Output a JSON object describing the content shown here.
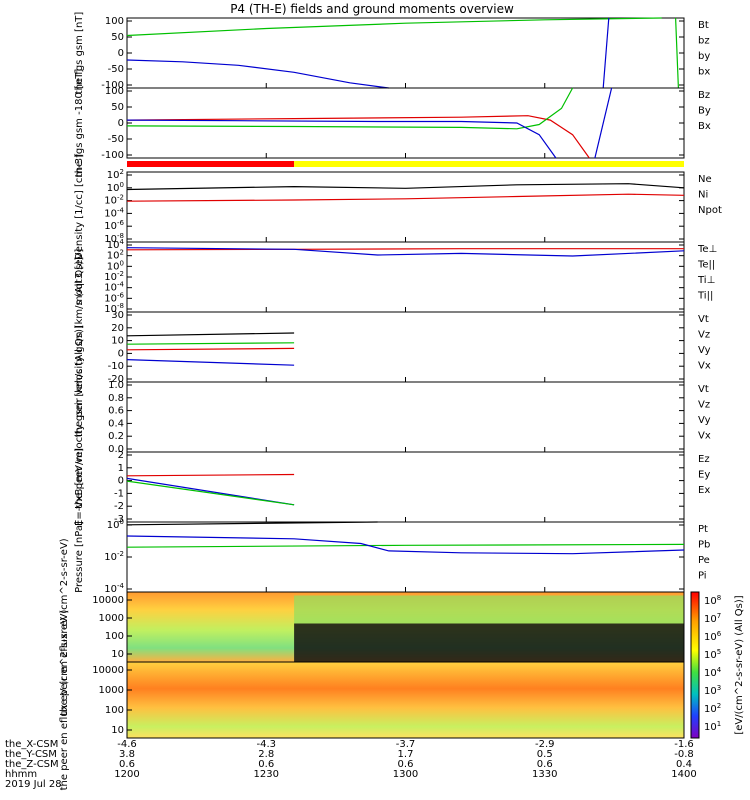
{
  "chart_data": {
    "type": "line",
    "title": "P4 (TH-E) fields and ground moments overview",
    "time_hhmm": [
      "1200",
      "1230",
      "1300",
      "1330",
      "1400"
    ],
    "orbit_labels": {
      "x": {
        "name": "the_X-CSM",
        "values": [
          "-4.6",
          "-4.3",
          "-3.7",
          "-2.9",
          "-1.6"
        ]
      },
      "y": {
        "name": "the_Y-CSM",
        "values": [
          "3.8",
          "2.8",
          "1.7",
          "0.5",
          "-0.8"
        ]
      },
      "z": {
        "name": "the_Z-CSM",
        "values": [
          "0.6",
          "0.6",
          "0.6",
          "0.6",
          "0.4"
        ]
      },
      "hhmm": "hhmm",
      "date": "2019 Jul 28"
    },
    "panels": [
      {
        "id": "fgs-gsm",
        "ylabel": "the fgs gsm [nT]",
        "yticks": [
          "100",
          "50",
          "0",
          "-50",
          "-100"
        ],
        "ylim": [
          -100,
          100
        ],
        "legend": [
          {
            "name": "Bt",
            "color": "#000000"
          },
          {
            "name": "bz",
            "color": "#e00000"
          },
          {
            "name": "by",
            "color": "#00c000"
          },
          {
            "name": "bx",
            "color": "#0000d0"
          }
        ],
        "series": [
          {
            "name": "by",
            "color": "#00c000",
            "points": [
              [
                0,
                50
              ],
              [
                0.25,
                70
              ],
              [
                0.5,
                85
              ],
              [
                0.75,
                95
              ],
              [
                0.96,
                100
              ]
            ]
          },
          {
            "name": "by-tail",
            "color": "#00c000",
            "points": [
              [
                0.985,
                100
              ],
              [
                0.99,
                -100
              ]
            ]
          },
          {
            "name": "bx",
            "color": "#0000d0",
            "points": [
              [
                0,
                -20
              ],
              [
                0.1,
                -25
              ],
              [
                0.2,
                -35
              ],
              [
                0.3,
                -55
              ],
              [
                0.4,
                -85
              ],
              [
                0.47,
                -100
              ]
            ]
          },
          {
            "name": "bx-tail",
            "color": "#0000d0",
            "points": [
              [
                0.855,
                -100
              ],
              [
                0.865,
                100
              ]
            ]
          }
        ]
      },
      {
        "id": "fgs-geo",
        "ylabel": "the fgs gsm -180 [nT]",
        "yticks": [
          "100",
          "50",
          "0",
          "-50",
          "-100"
        ],
        "ylim": [
          -120,
          120
        ],
        "legend": [
          {
            "name": "Bz",
            "color": "#e00000"
          },
          {
            "name": "By",
            "color": "#00c000"
          },
          {
            "name": "Bx",
            "color": "#0000d0"
          }
        ],
        "series": [
          {
            "name": "Bz",
            "color": "#e00000",
            "points": [
              [
                0,
                10
              ],
              [
                0.3,
                15
              ],
              [
                0.6,
                20
              ],
              [
                0.72,
                25
              ],
              [
                0.76,
                10
              ],
              [
                0.8,
                -40
              ],
              [
                0.83,
                -120
              ]
            ]
          },
          {
            "name": "By",
            "color": "#00c000",
            "points": [
              [
                0,
                -10
              ],
              [
                0.3,
                -12
              ],
              [
                0.6,
                -15
              ],
              [
                0.7,
                -20
              ],
              [
                0.74,
                -5
              ],
              [
                0.78,
                50
              ],
              [
                0.8,
                120
              ]
            ]
          },
          {
            "name": "Bx",
            "color": "#0000d0",
            "points": [
              [
                0,
                10
              ],
              [
                0.2,
                8
              ],
              [
                0.45,
                5
              ],
              [
                0.6,
                5
              ],
              [
                0.7,
                0
              ],
              [
                0.74,
                -40
              ],
              [
                0.77,
                -120
              ]
            ]
          },
          {
            "name": "Bx-tail",
            "color": "#0000d0",
            "points": [
              [
                0.84,
                -120
              ],
              [
                0.87,
                120
              ]
            ]
          }
        ]
      },
      {
        "id": "density",
        "ylabel": "Density [1/cc] [cm-3]",
        "yticks": [
          "10^2",
          "10^0",
          "10^-2",
          "10^-4",
          "10^-6",
          "10^-8"
        ],
        "ylim": [
          -9,
          3
        ],
        "legend": [
          {
            "name": "Ne",
            "color": "#e00000"
          },
          {
            "name": "Ni",
            "color": "#000000"
          },
          {
            "name": "Npot",
            "color": "#0000d0"
          }
        ],
        "series": [
          {
            "name": "Ni",
            "color": "#000000",
            "points": [
              [
                0,
                0
              ],
              [
                0.3,
                0.5
              ],
              [
                0.5,
                0.2
              ],
              [
                0.7,
                0.8
              ],
              [
                0.9,
                1.0
              ],
              [
                1.0,
                0.3
              ]
            ]
          },
          {
            "name": "Ne",
            "color": "#e00000",
            "points": [
              [
                0,
                -2
              ],
              [
                0.3,
                -1.8
              ],
              [
                0.5,
                -1.6
              ],
              [
                0.7,
                -1.2
              ],
              [
                0.9,
                -0.8
              ],
              [
                1.0,
                -1.0
              ]
            ]
          }
        ]
      },
      {
        "id": "temperature",
        "ylabel": "moqt3 [eV]",
        "yticks": [
          "10^4",
          "10^2",
          "10^0",
          "10^-2",
          "10^-4",
          "10^-6",
          "10^-8"
        ],
        "ylim": [
          -9,
          4.5
        ],
        "legend": [
          {
            "name": "Te⊥",
            "color": "#e00000"
          },
          {
            "name": "Te||",
            "color": "#000000"
          },
          {
            "name": "Ti⊥",
            "color": "#0000d0"
          },
          {
            "name": "Ti||",
            "color": "#00c000"
          }
        ],
        "series": [
          {
            "name": "Te",
            "color": "#e00000",
            "points": [
              [
                0,
                3.0
              ],
              [
                0.3,
                3.1
              ],
              [
                0.6,
                3.2
              ],
              [
                1.0,
                3.2
              ]
            ]
          },
          {
            "name": "Ti",
            "color": "#0000d0",
            "points": [
              [
                0,
                3.4
              ],
              [
                0.3,
                3.1
              ],
              [
                0.45,
                2.0
              ],
              [
                0.6,
                2.3
              ],
              [
                0.8,
                1.8
              ],
              [
                1.0,
                2.8
              ]
            ]
          }
        ]
      },
      {
        "id": "peir-velocity",
        "ylabel": "the peir velocity gsm [km/s (All Qs)]",
        "yticks": [
          "30",
          "20",
          "10",
          "0",
          "-10",
          "-20"
        ],
        "ylim": [
          -20,
          30
        ],
        "legend": [
          {
            "name": "Vt",
            "color": "#000000"
          },
          {
            "name": "Vz",
            "color": "#e00000"
          },
          {
            "name": "Vy",
            "color": "#00c000"
          },
          {
            "name": "Vx",
            "color": "#0000d0"
          }
        ],
        "series": [
          {
            "name": "Vt",
            "color": "#000000",
            "points": [
              [
                0,
                13
              ],
              [
                0.3,
                15
              ]
            ]
          },
          {
            "name": "Vy",
            "color": "#00c000",
            "points": [
              [
                0,
                7
              ],
              [
                0.3,
                8
              ]
            ]
          },
          {
            "name": "Vz",
            "color": "#e00000",
            "points": [
              [
                0,
                3
              ],
              [
                0.3,
                4
              ]
            ]
          },
          {
            "name": "Vx",
            "color": "#0000d0",
            "points": [
              [
                0,
                -4
              ],
              [
                0.3,
                -8
              ]
            ]
          }
        ]
      },
      {
        "id": "peer-velocity",
        "ylabel": "the peer velocity gsm [km/s (All Qs)]",
        "yticks": [
          "1.0",
          "0.8",
          "0.6",
          "0.4",
          "0.2",
          "0.0"
        ],
        "ylim": [
          0,
          1
        ],
        "legend": [
          {
            "name": "Vt",
            "color": "#000000"
          },
          {
            "name": "Vz",
            "color": "#e00000"
          },
          {
            "name": "Vy",
            "color": "#00c000"
          },
          {
            "name": "Vx",
            "color": "#0000d0"
          }
        ],
        "series": []
      },
      {
        "id": "efield",
        "ylabel": "E=-VxB [mV/m]",
        "yticks": [
          "2",
          "1",
          "0",
          "-1",
          "-2",
          "-3"
        ],
        "ylim": [
          -3.3,
          2
        ],
        "legend": [
          {
            "name": "Ez",
            "color": "#e00000"
          },
          {
            "name": "Ey",
            "color": "#00c000"
          },
          {
            "name": "Ex",
            "color": "#0000d0"
          }
        ],
        "series": [
          {
            "name": "Ez",
            "color": "#e00000",
            "points": [
              [
                0,
                0.2
              ],
              [
                0.3,
                0.3
              ]
            ]
          },
          {
            "name": "Ex",
            "color": "#0000d0",
            "points": [
              [
                0,
                0
              ],
              [
                0.3,
                -2
              ]
            ]
          },
          {
            "name": "Ey",
            "color": "#00c000",
            "points": [
              [
                0,
                -0.2
              ],
              [
                0.3,
                -2
              ]
            ]
          }
        ]
      },
      {
        "id": "pressure",
        "ylabel": "Pressure [nPa]",
        "yticks": [
          "10^0",
          "10^-2",
          "10^-4"
        ],
        "ylim": [
          -6,
          1.5
        ],
        "legend": [
          {
            "name": "Pt",
            "color": "#000000"
          },
          {
            "name": "Pb",
            "color": "#e00000"
          },
          {
            "name": "Pe",
            "color": "#00c000"
          },
          {
            "name": "Pi",
            "color": "#0000d0"
          }
        ],
        "series": [
          {
            "name": "Pt",
            "color": "#000000",
            "points": [
              [
                0,
                1.2
              ],
              [
                0.45,
                1.5
              ]
            ]
          },
          {
            "name": "Pe",
            "color": "#00c000",
            "points": [
              [
                0,
                -1.2
              ],
              [
                0.5,
                -1.0
              ],
              [
                1.0,
                -0.9
              ]
            ]
          },
          {
            "name": "Pi",
            "color": "#0000d0",
            "points": [
              [
                0,
                0
              ],
              [
                0.3,
                -0.3
              ],
              [
                0.42,
                -0.8
              ],
              [
                0.47,
                -1.6
              ],
              [
                0.6,
                -1.8
              ],
              [
                0.8,
                -1.9
              ],
              [
                1.0,
                -1.5
              ]
            ]
          }
        ]
      }
    ],
    "spectrograms": [
      {
        "id": "peir-en-eflux",
        "ylabel": "the peir en eflux eV (cm^2-s-sr-eV)",
        "yticks": [
          "10000",
          "1000",
          "100",
          "10"
        ]
      },
      {
        "id": "peer-en-eflux",
        "ylabel": "the peer en eflux eV (cm^2-s-sr-eV)",
        "yticks": [
          "10000",
          "1000",
          "100",
          "10"
        ]
      }
    ],
    "colorbar": {
      "label": "[eV/(cm^2-s-sr-eV) (All Qs)]",
      "ticks": [
        "10^8",
        "10^7",
        "10^6",
        "10^5",
        "10^4",
        "10^3",
        "10^2",
        "10^1"
      ]
    }
  }
}
